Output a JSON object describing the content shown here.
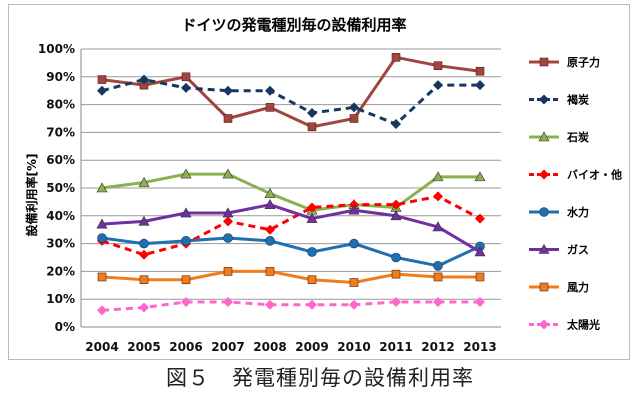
{
  "chart_data": {
    "type": "line",
    "title": "ドイツの発電種別毎の設備利用率",
    "xlabel": "",
    "ylabel": "設備利用率[%]",
    "ylim": [
      0,
      100
    ],
    "yticks": [
      "0%",
      "10%",
      "20%",
      "30%",
      "40%",
      "50%",
      "60%",
      "70%",
      "80%",
      "90%",
      "100%"
    ],
    "categories": [
      "2004",
      "2005",
      "2006",
      "2007",
      "2008",
      "2009",
      "2010",
      "2011",
      "2012",
      "2013"
    ],
    "grid": true,
    "legend_position": "right",
    "series": [
      {
        "name": "原子力",
        "color": "#a0453f",
        "marker": "square",
        "dash": "solid",
        "values": [
          89,
          87,
          90,
          75,
          79,
          72,
          75,
          97,
          94,
          92
        ]
      },
      {
        "name": "褐炭",
        "color": "#17375e",
        "marker": "diamond",
        "dash": "dashed",
        "values": [
          85,
          89,
          86,
          85,
          85,
          77,
          79,
          73,
          87,
          87
        ]
      },
      {
        "name": "石炭",
        "color": "#8cb04f",
        "marker": "triangle",
        "dash": "solid",
        "values": [
          50,
          52,
          55,
          55,
          48,
          42,
          44,
          43,
          54,
          54
        ]
      },
      {
        "name": "バイオ・他",
        "color": "#ff0000",
        "marker": "diamond",
        "dash": "dashed",
        "values": [
          31,
          26,
          30,
          38,
          35,
          43,
          44,
          44,
          47,
          39
        ]
      },
      {
        "name": "水力",
        "color": "#1f6fb1",
        "marker": "circle",
        "dash": "solid",
        "values": [
          32,
          30,
          31,
          32,
          31,
          27,
          30,
          25,
          22,
          29
        ]
      },
      {
        "name": "ガス",
        "color": "#7030a0",
        "marker": "triangle",
        "dash": "solid",
        "values": [
          37,
          38,
          41,
          41,
          44,
          39,
          42,
          40,
          36,
          27
        ]
      },
      {
        "name": "風力",
        "color": "#f07d1a",
        "marker": "square",
        "dash": "solid",
        "values": [
          18,
          17,
          17,
          20,
          20,
          17,
          16,
          19,
          18,
          18
        ]
      },
      {
        "name": "太陽光",
        "color": "#ff66cc",
        "marker": "diamond",
        "dash": "dashed",
        "values": [
          6,
          7,
          9,
          9,
          8,
          8,
          8,
          9,
          9,
          9
        ]
      }
    ]
  },
  "caption": "図５　発電種別毎の設備利用率"
}
